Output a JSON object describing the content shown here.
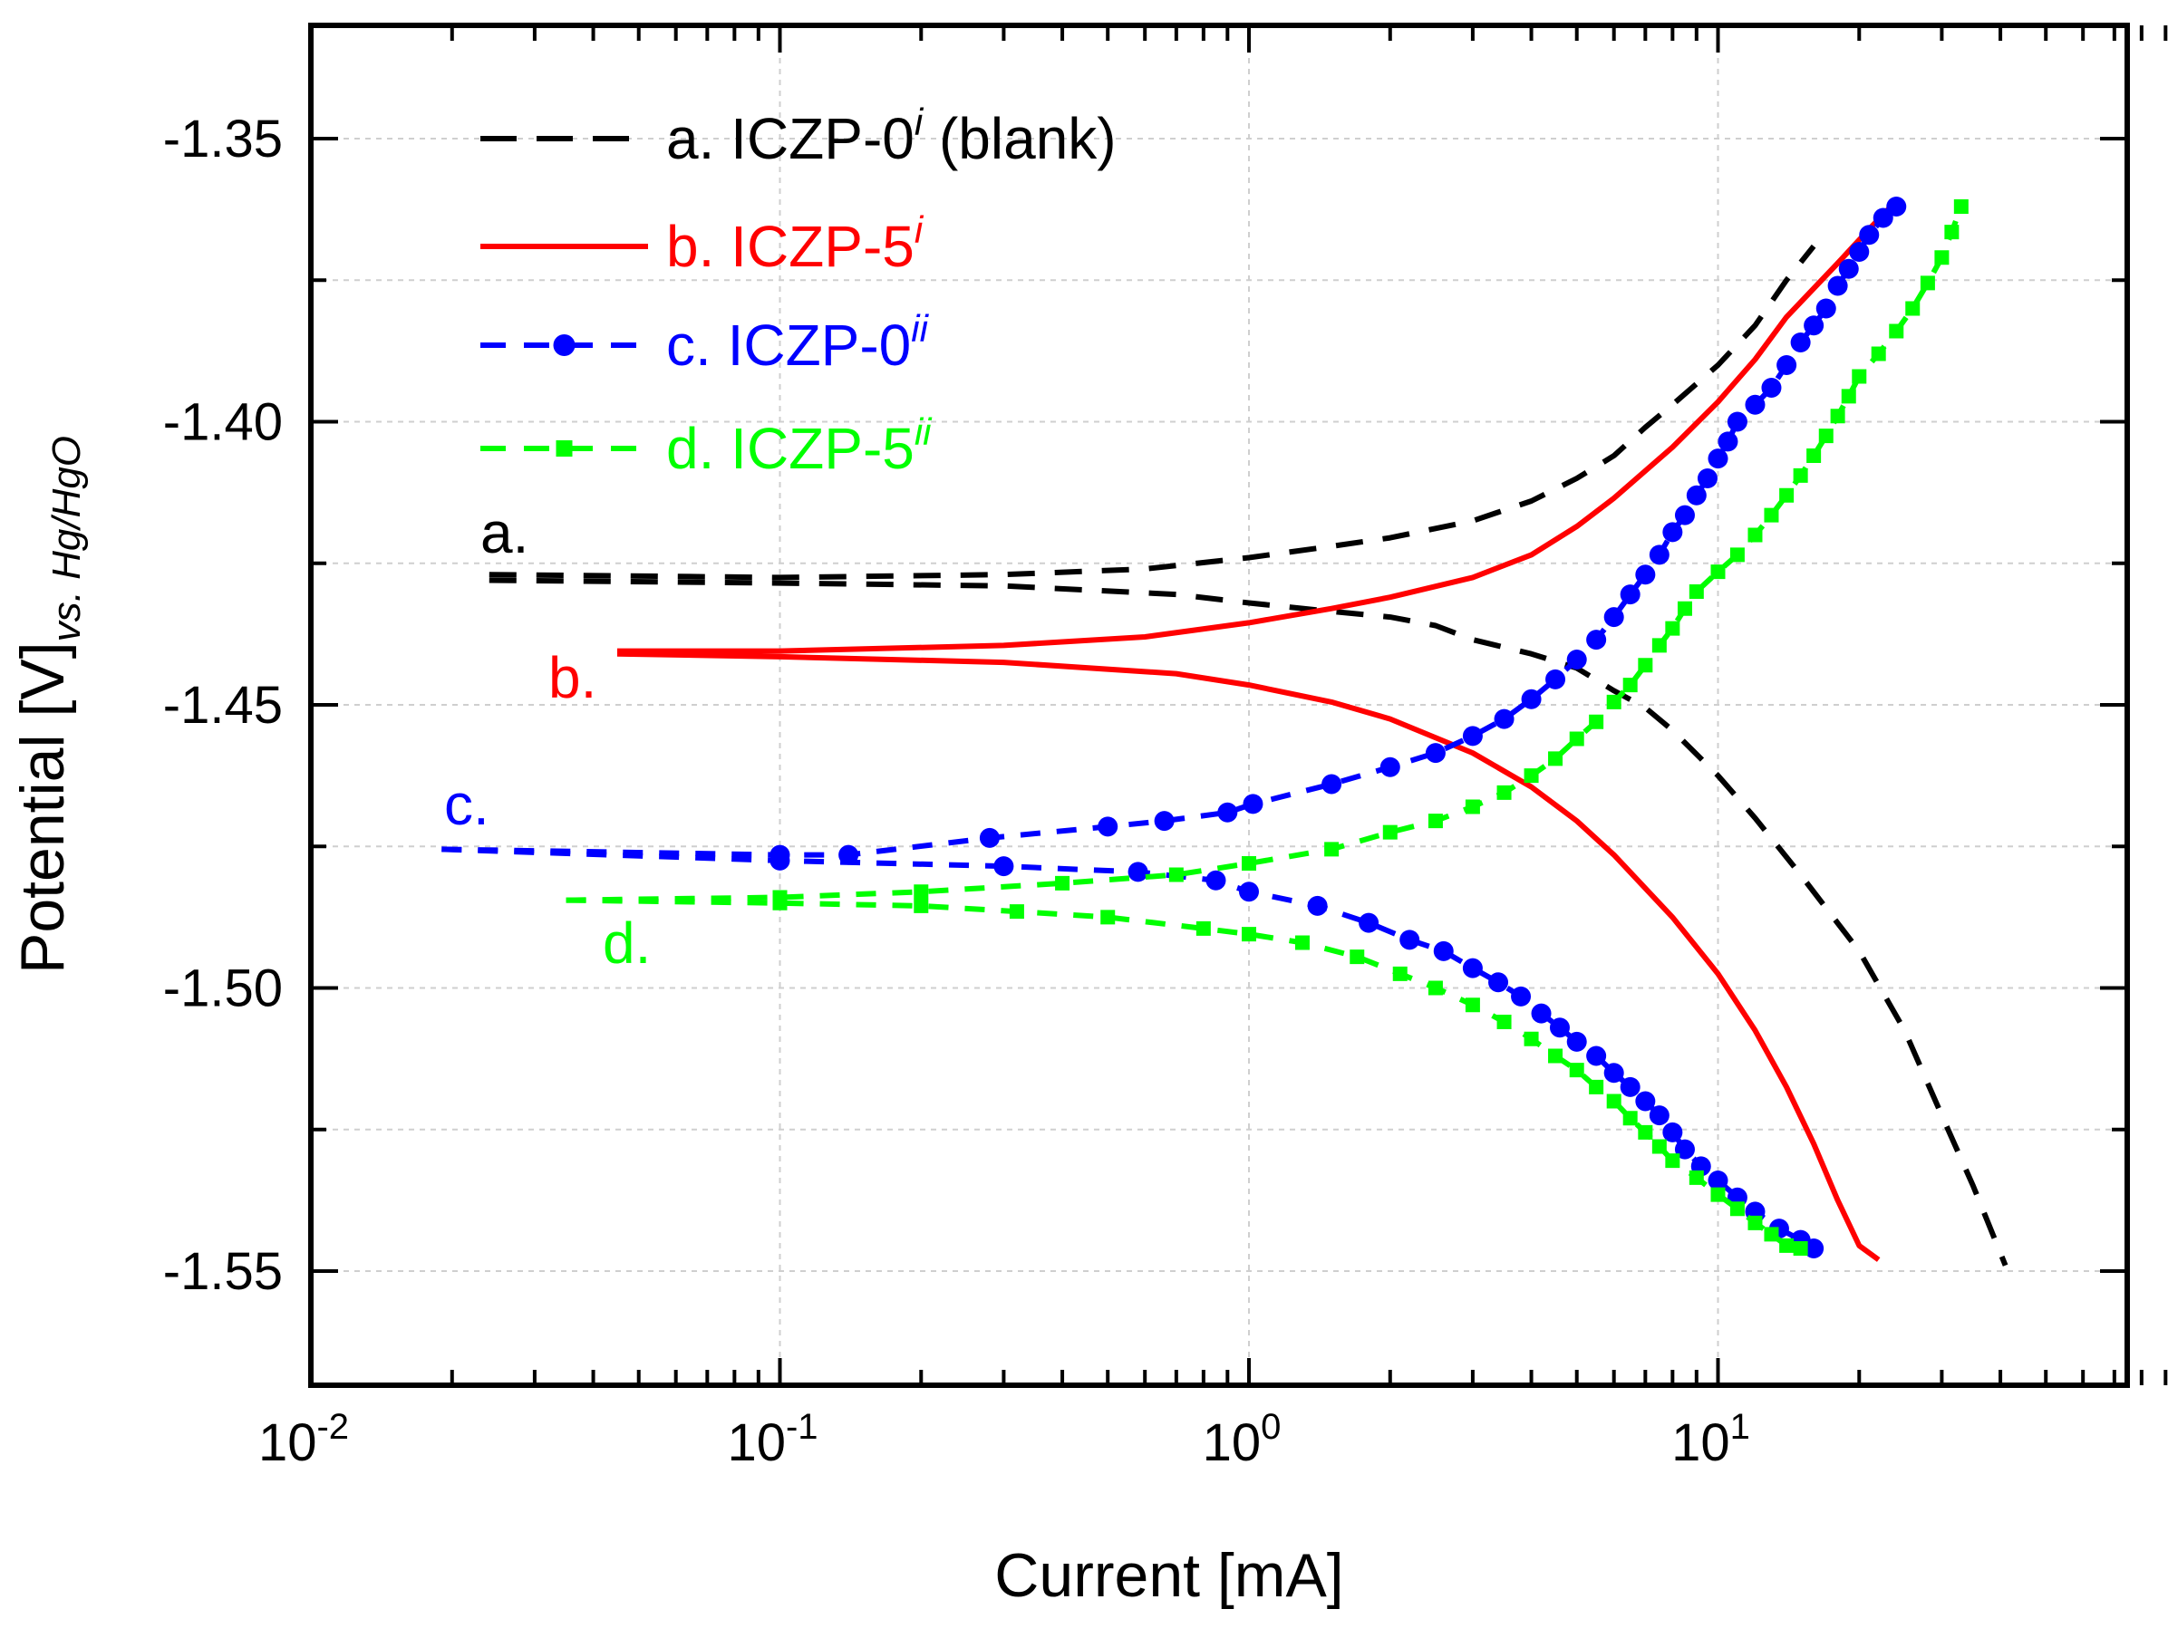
{
  "chart_data": {
    "type": "line",
    "title": "",
    "xlabel": "Current [mA]",
    "ylabel": "Potential [V]",
    "ylabel_subscript": "vs. Hg/HgO",
    "xscale": "log",
    "xlim": [
      0.01,
      90
    ],
    "ylim": [
      -1.33,
      -1.57
    ],
    "x_ticks": [
      {
        "base": "10",
        "exp": "-2"
      },
      {
        "base": "10",
        "exp": "-1"
      },
      {
        "base": "10",
        "exp": "0"
      },
      {
        "base": "10",
        "exp": "1"
      }
    ],
    "y_ticks": [
      "-1.35",
      "-1.40",
      "-1.45",
      "-1.50",
      "-1.55"
    ],
    "y_tick_values": [
      -1.35,
      -1.4,
      -1.45,
      -1.5,
      -1.55
    ],
    "grid": true,
    "legend_position": "top-left",
    "series": [
      {
        "name": "a. ICZP-0",
        "legend_main": "a. ICZP-0",
        "legend_sup": "i",
        "legend_suffix": " (blank)",
        "label": "a.",
        "color": "#000000",
        "style": "dashed",
        "marker": "none",
        "anodic": [
          [
            0.024,
            -1.427
          ],
          [
            0.1,
            -1.4275
          ],
          [
            0.3,
            -1.427
          ],
          [
            0.6,
            -1.426
          ],
          [
            1.0,
            -1.424
          ],
          [
            1.5,
            -1.422
          ],
          [
            2.0,
            -1.4205
          ],
          [
            3.0,
            -1.4175
          ],
          [
            4.0,
            -1.414
          ],
          [
            5.0,
            -1.41
          ],
          [
            6.0,
            -1.406
          ],
          [
            7.0,
            -1.401
          ],
          [
            8.0,
            -1.397
          ],
          [
            10.0,
            -1.39
          ],
          [
            12.0,
            -1.383
          ],
          [
            14.0,
            -1.375
          ],
          [
            16.0,
            -1.369
          ]
        ],
        "cathodic": [
          [
            0.024,
            -1.428
          ],
          [
            0.1,
            -1.4285
          ],
          [
            0.3,
            -1.429
          ],
          [
            0.7,
            -1.4305
          ],
          [
            1.0,
            -1.432
          ],
          [
            1.5,
            -1.4335
          ],
          [
            2.0,
            -1.4345
          ],
          [
            2.5,
            -1.436
          ],
          [
            3.0,
            -1.4385
          ],
          [
            4.0,
            -1.441
          ],
          [
            5.0,
            -1.4435
          ],
          [
            6.0,
            -1.4475
          ],
          [
            7.0,
            -1.4505
          ],
          [
            8.0,
            -1.4545
          ],
          [
            10.0,
            -1.4625
          ],
          [
            12.0,
            -1.47
          ],
          [
            15.0,
            -1.48
          ],
          [
            20.0,
            -1.4935
          ],
          [
            25.0,
            -1.5075
          ],
          [
            30.0,
            -1.5225
          ],
          [
            35.0,
            -1.535
          ],
          [
            41.0,
            -1.549
          ]
        ]
      },
      {
        "name": "b. ICZP-5",
        "legend_main": "b. ICZP-5",
        "legend_sup": "i",
        "legend_suffix": "",
        "label": "b.",
        "color": "#ff0000",
        "style": "solid",
        "marker": "none",
        "anodic": [
          [
            0.045,
            -1.4405
          ],
          [
            0.1,
            -1.4405
          ],
          [
            0.3,
            -1.4395
          ],
          [
            0.6,
            -1.438
          ],
          [
            1.0,
            -1.4355
          ],
          [
            1.5,
            -1.433
          ],
          [
            2.0,
            -1.431
          ],
          [
            3.0,
            -1.4275
          ],
          [
            4.0,
            -1.4235
          ],
          [
            5.0,
            -1.4185
          ],
          [
            6.0,
            -1.4135
          ],
          [
            8.0,
            -1.4045
          ],
          [
            10.0,
            -1.3965
          ],
          [
            12.0,
            -1.389
          ],
          [
            14.0,
            -1.3815
          ],
          [
            18.0,
            -1.372
          ],
          [
            21.0,
            -1.366
          ],
          [
            24.0,
            -1.361
          ]
        ],
        "cathodic": [
          [
            0.045,
            -1.441
          ],
          [
            0.1,
            -1.4415
          ],
          [
            0.3,
            -1.4425
          ],
          [
            0.7,
            -1.4445
          ],
          [
            1.0,
            -1.4465
          ],
          [
            1.5,
            -1.4495
          ],
          [
            2.0,
            -1.4525
          ],
          [
            3.0,
            -1.4585
          ],
          [
            4.0,
            -1.4645
          ],
          [
            5.0,
            -1.4705
          ],
          [
            6.0,
            -1.4765
          ],
          [
            8.0,
            -1.4875
          ],
          [
            10.0,
            -1.4975
          ],
          [
            12.0,
            -1.5075
          ],
          [
            14.0,
            -1.5175
          ],
          [
            16.0,
            -1.5275
          ],
          [
            18.0,
            -1.5375
          ],
          [
            20.0,
            -1.5455
          ],
          [
            22.0,
            -1.548
          ]
        ]
      },
      {
        "name": "c. ICZP-0",
        "legend_main": "c. ICZP-0",
        "legend_sup": "ii",
        "legend_suffix": "",
        "label": "c.",
        "color": "#0000ff",
        "style": "dashed",
        "marker": "circle",
        "anodic": [
          [
            0.019,
            -1.4755
          ],
          [
            0.1,
            -1.4765
          ],
          [
            0.14,
            -1.4765
          ],
          [
            0.28,
            -1.4735
          ],
          [
            0.5,
            -1.4715
          ],
          [
            0.66,
            -1.4705
          ],
          [
            0.9,
            -1.469
          ],
          [
            1.02,
            -1.4675
          ],
          [
            1.5,
            -1.464
          ],
          [
            2.0,
            -1.461
          ],
          [
            2.5,
            -1.4585
          ],
          [
            3.0,
            -1.4555
          ],
          [
            3.5,
            -1.4525
          ],
          [
            4.0,
            -1.449
          ],
          [
            4.5,
            -1.4455
          ],
          [
            5.0,
            -1.442
          ],
          [
            5.5,
            -1.4385
          ],
          [
            6.0,
            -1.4345
          ],
          [
            6.5,
            -1.4305
          ],
          [
            7.0,
            -1.427
          ],
          [
            7.5,
            -1.4235
          ],
          [
            8.0,
            -1.4195
          ],
          [
            8.5,
            -1.4165
          ],
          [
            9.0,
            -1.413
          ],
          [
            9.5,
            -1.41
          ],
          [
            10.0,
            -1.4065
          ],
          [
            10.5,
            -1.4035
          ],
          [
            11.0,
            -1.4
          ],
          [
            12.0,
            -1.397
          ],
          [
            13.0,
            -1.394
          ],
          [
            14.0,
            -1.39
          ],
          [
            15.0,
            -1.386
          ],
          [
            16.0,
            -1.383
          ],
          [
            17.0,
            -1.38
          ],
          [
            18.0,
            -1.376
          ],
          [
            19.0,
            -1.373
          ],
          [
            20.0,
            -1.37
          ],
          [
            21.0,
            -1.367
          ],
          [
            22.5,
            -1.364
          ],
          [
            24.0,
            -1.362
          ]
        ],
        "cathodic": [
          [
            0.019,
            -1.4755
          ],
          [
            0.1,
            -1.4775
          ],
          [
            0.3,
            -1.4785
          ],
          [
            0.58,
            -1.4795
          ],
          [
            0.85,
            -1.481
          ],
          [
            1.0,
            -1.483
          ],
          [
            1.4,
            -1.4855
          ],
          [
            1.8,
            -1.4885
          ],
          [
            2.2,
            -1.4915
          ],
          [
            2.6,
            -1.4935
          ],
          [
            3.0,
            -1.4965
          ],
          [
            3.4,
            -1.499
          ],
          [
            3.8,
            -1.5015
          ],
          [
            4.2,
            -1.5045
          ],
          [
            4.6,
            -1.507
          ],
          [
            5.0,
            -1.5095
          ],
          [
            5.5,
            -1.512
          ],
          [
            6.0,
            -1.515
          ],
          [
            6.5,
            -1.5175
          ],
          [
            7.0,
            -1.52
          ],
          [
            7.5,
            -1.5225
          ],
          [
            8.0,
            -1.5255
          ],
          [
            8.5,
            -1.5285
          ],
          [
            9.2,
            -1.5315
          ],
          [
            10.0,
            -1.534
          ],
          [
            11.0,
            -1.537
          ],
          [
            12.0,
            -1.5395
          ],
          [
            13.5,
            -1.5425
          ],
          [
            15.0,
            -1.5445
          ],
          [
            16.0,
            -1.546
          ]
        ]
      },
      {
        "name": "d. ICZP-5",
        "legend_main": "d. ICZP-5",
        "legend_sup": "ii",
        "legend_suffix": "",
        "label": "d.",
        "color": "#00ff00",
        "style": "dashed",
        "marker": "square",
        "anodic": [
          [
            0.035,
            -1.4845
          ],
          [
            0.1,
            -1.484
          ],
          [
            0.2,
            -1.483
          ],
          [
            0.4,
            -1.4815
          ],
          [
            0.7,
            -1.48
          ],
          [
            1.0,
            -1.478
          ],
          [
            1.5,
            -1.4755
          ],
          [
            2.0,
            -1.4725
          ],
          [
            2.5,
            -1.4705
          ],
          [
            3.0,
            -1.468
          ],
          [
            3.5,
            -1.4655
          ],
          [
            4.0,
            -1.4625
          ],
          [
            4.5,
            -1.4595
          ],
          [
            5.0,
            -1.456
          ],
          [
            5.5,
            -1.453
          ],
          [
            6.0,
            -1.4495
          ],
          [
            6.5,
            -1.4465
          ],
          [
            7.0,
            -1.443
          ],
          [
            7.5,
            -1.4395
          ],
          [
            8.0,
            -1.4365
          ],
          [
            8.5,
            -1.433
          ],
          [
            9.0,
            -1.43
          ],
          [
            10.0,
            -1.4265
          ],
          [
            11.0,
            -1.4235
          ],
          [
            12.0,
            -1.42
          ],
          [
            13.0,
            -1.4165
          ],
          [
            14.0,
            -1.413
          ],
          [
            15.0,
            -1.4095
          ],
          [
            16.0,
            -1.406
          ],
          [
            17.0,
            -1.4025
          ],
          [
            18.0,
            -1.399
          ],
          [
            19.0,
            -1.3955
          ],
          [
            20.0,
            -1.392
          ],
          [
            22.0,
            -1.388
          ],
          [
            24.0,
            -1.384
          ],
          [
            26.0,
            -1.38
          ],
          [
            28.0,
            -1.3755
          ],
          [
            30.0,
            -1.371
          ],
          [
            31.5,
            -1.3665
          ],
          [
            33.0,
            -1.362
          ]
        ],
        "cathodic": [
          [
            0.035,
            -1.4845
          ],
          [
            0.1,
            -1.485
          ],
          [
            0.2,
            -1.4855
          ],
          [
            0.32,
            -1.4865
          ],
          [
            0.5,
            -1.4875
          ],
          [
            0.8,
            -1.4895
          ],
          [
            1.0,
            -1.4905
          ],
          [
            1.3,
            -1.492
          ],
          [
            1.7,
            -1.4945
          ],
          [
            2.1,
            -1.4975
          ],
          [
            2.5,
            -1.5
          ],
          [
            3.0,
            -1.503
          ],
          [
            3.5,
            -1.506
          ],
          [
            4.0,
            -1.509
          ],
          [
            4.5,
            -1.512
          ],
          [
            5.0,
            -1.5145
          ],
          [
            5.5,
            -1.5175
          ],
          [
            6.0,
            -1.52
          ],
          [
            6.5,
            -1.523
          ],
          [
            7.0,
            -1.5255
          ],
          [
            7.5,
            -1.528
          ],
          [
            8.0,
            -1.5305
          ],
          [
            9.0,
            -1.5335
          ],
          [
            10.0,
            -1.5365
          ],
          [
            11.0,
            -1.539
          ],
          [
            12.0,
            -1.5415
          ],
          [
            13.0,
            -1.5435
          ],
          [
            14.0,
            -1.5455
          ],
          [
            15.0,
            -1.546
          ]
        ]
      }
    ]
  }
}
